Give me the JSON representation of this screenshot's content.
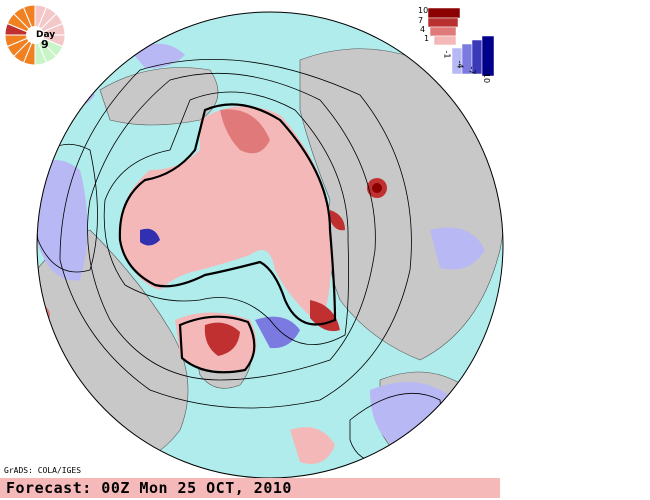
{
  "map": {
    "credit": "GrADS: COLA/IGES",
    "forecast": "Forecast: 00Z Mon 25 OCT, 2010"
  },
  "day_dial": {
    "label": "Day",
    "day": "9",
    "total_segments": 16,
    "elapsed_segments": 9
  },
  "legend": {
    "labels": [
      "10",
      "7",
      "4",
      "1",
      "-1",
      "-4",
      "-7",
      "-10"
    ],
    "colors": [
      "#8b0000",
      "#b83030",
      "#e07a7a",
      "#f5b8b8",
      "#b8b8f5",
      "#7a7ae0",
      "#3a3ab8",
      "#00008b"
    ]
  },
  "colors": {
    "ocean": "#b0ecec",
    "land": "#c8c8c8",
    "positive": "#f5b8b8",
    "positive_strong": "#c03030",
    "negative": "#b8b8f5",
    "negative_strong": "#3030b0",
    "forecast_bar": "#f5b9b9"
  }
}
